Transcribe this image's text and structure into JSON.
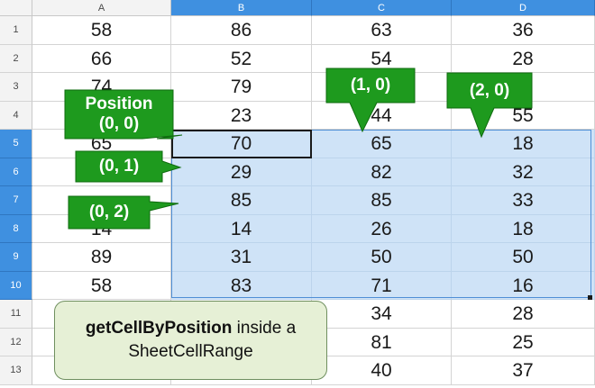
{
  "columns": [
    "A",
    "B",
    "C",
    "D"
  ],
  "rows": [
    {
      "num": "1",
      "cells": [
        "58",
        "86",
        "63",
        "36"
      ]
    },
    {
      "num": "2",
      "cells": [
        "66",
        "52",
        "54",
        "28"
      ]
    },
    {
      "num": "3",
      "cells": [
        "74",
        "79",
        "",
        ""
      ]
    },
    {
      "num": "4",
      "cells": [
        "",
        "23",
        "44",
        "55"
      ]
    },
    {
      "num": "5",
      "cells": [
        "65",
        "70",
        "65",
        "18"
      ]
    },
    {
      "num": "6",
      "cells": [
        "",
        "29",
        "82",
        "32"
      ]
    },
    {
      "num": "7",
      "cells": [
        "",
        "85",
        "85",
        "33"
      ]
    },
    {
      "num": "8",
      "cells": [
        "14",
        "14",
        "26",
        "18"
      ]
    },
    {
      "num": "9",
      "cells": [
        "89",
        "31",
        "50",
        "50"
      ]
    },
    {
      "num": "10",
      "cells": [
        "58",
        "83",
        "71",
        "16"
      ]
    },
    {
      "num": "11",
      "cells": [
        "",
        "",
        "34",
        "28"
      ]
    },
    {
      "num": "12",
      "cells": [
        "",
        "",
        "81",
        "25"
      ]
    },
    {
      "num": "13",
      "cells": [
        "",
        "",
        "40",
        "37"
      ]
    }
  ],
  "callouts": {
    "position": "Position\n(0, 0)",
    "p01": "(0, 1)",
    "p02": "(0, 2)",
    "p10": "(1, 0)",
    "p20": "(2, 0)"
  },
  "summary": {
    "method": "getCellByPosition",
    "rest": " inside a SheetCellRange"
  },
  "colors": {
    "header_selected": "#3f90e0",
    "selection_fill": "#cfe3f7",
    "callout_green": "#1e9a1e",
    "summary_fill": "#e6f0d6"
  }
}
